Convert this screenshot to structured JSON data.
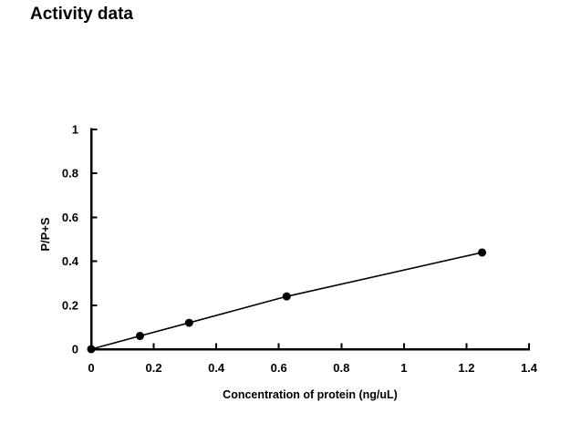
{
  "title": "Activity data",
  "chart_data": {
    "type": "line",
    "title": "Activity data",
    "xlabel": "Concentration of protein (ng/uL)",
    "ylabel": "P/P+S",
    "x": [
      0,
      0.156,
      0.313,
      0.625,
      1.25
    ],
    "y": [
      0,
      0.06,
      0.12,
      0.24,
      0.44
    ],
    "xlim": [
      0,
      1.4
    ],
    "ylim": [
      0,
      1
    ],
    "x_ticks": [
      0,
      0.2,
      0.4,
      0.6,
      0.8,
      1,
      1.2,
      1.4
    ],
    "x_tick_labels": [
      "0",
      "0.2",
      "0.4",
      "0.6",
      "0.8",
      "1",
      "1.2",
      "1.4"
    ],
    "y_ticks": [
      0,
      0.2,
      0.4,
      0.6,
      0.8,
      1
    ],
    "y_tick_labels": [
      "0",
      "0.2",
      "0.4",
      "0.6",
      "0.8",
      "1"
    ],
    "grid": false,
    "legend": false,
    "marker": "filled-circle",
    "series_count": 1,
    "colors": {
      "ink": "#000000",
      "background": "#ffffff"
    }
  }
}
